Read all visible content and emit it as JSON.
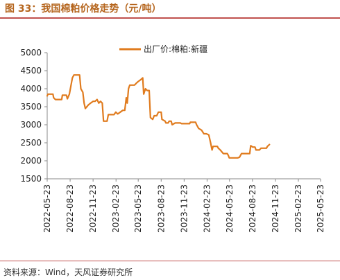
{
  "figure": {
    "title": "图 33：我国棉粕价格走势（元/吨）",
    "source": "资料来源：Wind，天风证券研究所",
    "line_color": "#e07b1e",
    "accent_color": "#c0504d"
  },
  "chart_data": {
    "type": "line",
    "title": "",
    "xlabel": "",
    "ylabel": "",
    "ylim": [
      1500,
      5000
    ],
    "yticks": [
      1500,
      2000,
      2500,
      3000,
      3500,
      4000,
      4500,
      5000
    ],
    "xticks": [
      "2022-05-23",
      "2022-08-23",
      "2022-11-23",
      "2023-02-23",
      "2023-05-23",
      "2023-08-23",
      "2023-11-23",
      "2024-02-23",
      "2024-05-23",
      "2024-08-23",
      "2024-11-23",
      "2025-02-23",
      "2025-05-23"
    ],
    "legend_position": "top-center",
    "grid": false,
    "series": [
      {
        "name": "出厂价:棉粕:新疆",
        "points": [
          [
            "2022-05-23",
            3800
          ],
          [
            "2022-05-26",
            3850
          ],
          [
            "2022-06-15",
            3850
          ],
          [
            "2022-06-18",
            3750
          ],
          [
            "2022-06-25",
            3700
          ],
          [
            "2022-07-20",
            3700
          ],
          [
            "2022-07-23",
            3820
          ],
          [
            "2022-08-08",
            3820
          ],
          [
            "2022-08-12",
            3720
          ],
          [
            "2022-08-20",
            3850
          ],
          [
            "2022-09-01",
            4300
          ],
          [
            "2022-09-07",
            4380
          ],
          [
            "2022-09-30",
            4380
          ],
          [
            "2022-10-05",
            4000
          ],
          [
            "2022-10-13",
            3900
          ],
          [
            "2022-10-18",
            3600
          ],
          [
            "2022-10-23",
            3450
          ],
          [
            "2022-10-29",
            3500
          ],
          [
            "2022-11-04",
            3550
          ],
          [
            "2022-11-13",
            3600
          ],
          [
            "2022-11-23",
            3650
          ],
          [
            "2022-12-01",
            3650
          ],
          [
            "2022-12-09",
            3700
          ],
          [
            "2022-12-16",
            3600
          ],
          [
            "2022-12-23",
            3650
          ],
          [
            "2022-12-30",
            3600
          ],
          [
            "2023-01-04",
            3100
          ],
          [
            "2023-01-18",
            3100
          ],
          [
            "2023-01-23",
            3280
          ],
          [
            "2023-02-15",
            3280
          ],
          [
            "2023-02-22",
            3350
          ],
          [
            "2023-03-02",
            3300
          ],
          [
            "2023-03-12",
            3350
          ],
          [
            "2023-03-22",
            3400
          ],
          [
            "2023-03-30",
            3400
          ],
          [
            "2023-04-05",
            3750
          ],
          [
            "2023-04-09",
            3600
          ],
          [
            "2023-04-14",
            4000
          ],
          [
            "2023-04-19",
            4100
          ],
          [
            "2023-05-08",
            4100
          ],
          [
            "2023-05-15",
            4150
          ],
          [
            "2023-05-23",
            4200
          ],
          [
            "2023-06-02",
            4250
          ],
          [
            "2023-06-10",
            4300
          ],
          [
            "2023-06-14",
            3850
          ],
          [
            "2023-06-21",
            4000
          ],
          [
            "2023-06-28",
            3950
          ],
          [
            "2023-07-06",
            3950
          ],
          [
            "2023-07-11",
            3200
          ],
          [
            "2023-07-20",
            3150
          ],
          [
            "2023-07-26",
            3250
          ],
          [
            "2023-08-05",
            3250
          ],
          [
            "2023-08-12",
            3350
          ],
          [
            "2023-08-23",
            3350
          ],
          [
            "2023-08-26",
            3150
          ],
          [
            "2023-09-08",
            3100
          ],
          [
            "2023-09-11",
            3050
          ],
          [
            "2023-09-20",
            3050
          ],
          [
            "2023-09-24",
            3100
          ],
          [
            "2023-10-02",
            3100
          ],
          [
            "2023-10-06",
            3000
          ],
          [
            "2023-10-18",
            3050
          ],
          [
            "2023-11-08",
            3050
          ],
          [
            "2023-11-13",
            3030
          ],
          [
            "2023-12-15",
            3030
          ],
          [
            "2023-12-18",
            3070
          ],
          [
            "2024-01-08",
            3070
          ],
          [
            "2024-01-12",
            3000
          ],
          [
            "2024-01-16",
            2950
          ],
          [
            "2024-01-20",
            2900
          ],
          [
            "2024-02-01",
            2850
          ],
          [
            "2024-02-10",
            2750
          ],
          [
            "2024-02-20",
            2750
          ],
          [
            "2024-03-01",
            2720
          ],
          [
            "2024-03-08",
            2500
          ],
          [
            "2024-03-14",
            2300
          ],
          [
            "2024-03-18",
            2400
          ],
          [
            "2024-04-04",
            2400
          ],
          [
            "2024-04-08",
            2350
          ],
          [
            "2024-04-16",
            2300
          ],
          [
            "2024-04-22",
            2250
          ],
          [
            "2024-04-28",
            2200
          ],
          [
            "2024-05-14",
            2200
          ],
          [
            "2024-05-18",
            2150
          ],
          [
            "2024-05-22",
            2080
          ],
          [
            "2024-06-25",
            2080
          ],
          [
            "2024-07-02",
            2100
          ],
          [
            "2024-07-10",
            2200
          ],
          [
            "2024-08-12",
            2200
          ],
          [
            "2024-08-16",
            2420
          ],
          [
            "2024-08-24",
            2380
          ],
          [
            "2024-09-02",
            2380
          ],
          [
            "2024-09-06",
            2300
          ],
          [
            "2024-09-20",
            2300
          ],
          [
            "2024-09-26",
            2350
          ],
          [
            "2024-10-18",
            2350
          ],
          [
            "2024-10-22",
            2400
          ],
          [
            "2024-10-30",
            2450
          ]
        ]
      }
    ]
  }
}
